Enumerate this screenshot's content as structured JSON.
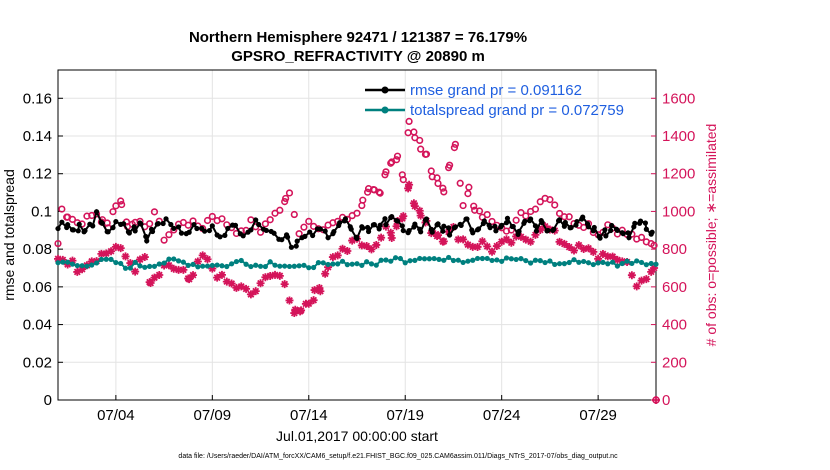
{
  "chart_data": {
    "type": "line",
    "title_line1": "Northern Hemisphere 92471 / 121387 = 76.179%",
    "title_line2": "GPSRO_REFRACTIVITY @ 20890 m",
    "xlabel": "Jul.01,2017 00:00:00 start",
    "ylabel_left": "rmse and totalspread",
    "ylabel_right": "# of obs: o=possible; ∗=assimilated",
    "footer": "data file: /Users/raeder/DAI/ATM_forcXX/CAM6_setup/f.e21.FHIST_BGC.f09_025.CAM6assim.011/Diags_NTrS_2017-07/obs_diag_output.nc",
    "xlim": [
      1,
      32
    ],
    "ylim_left": [
      0,
      0.175
    ],
    "ylim_right": [
      0,
      1750
    ],
    "xticks": [
      {
        "value": 4,
        "label": "07/04"
      },
      {
        "value": 9,
        "label": "07/09"
      },
      {
        "value": 14,
        "label": "07/14"
      },
      {
        "value": 19,
        "label": "07/19"
      },
      {
        "value": 24,
        "label": "07/24"
      },
      {
        "value": 29,
        "label": "07/29"
      }
    ],
    "yticks_left": [
      {
        "value": 0,
        "label": "0"
      },
      {
        "value": 0.02,
        "label": "0.02"
      },
      {
        "value": 0.04,
        "label": "0.04"
      },
      {
        "value": 0.06,
        "label": "0.06"
      },
      {
        "value": 0.08,
        "label": "0.08"
      },
      {
        "value": 0.1,
        "label": "0.1"
      },
      {
        "value": 0.12,
        "label": "0.12"
      },
      {
        "value": 0.14,
        "label": "0.14"
      },
      {
        "value": 0.16,
        "label": "0.16"
      }
    ],
    "yticks_right": [
      {
        "value": 0,
        "label": "0"
      },
      {
        "value": 200,
        "label": "200"
      },
      {
        "value": 400,
        "label": "400"
      },
      {
        "value": 600,
        "label": "600"
      },
      {
        "value": 800,
        "label": "800"
      },
      {
        "value": 1000,
        "label": "1000"
      },
      {
        "value": 1200,
        "label": "1200"
      },
      {
        "value": 1400,
        "label": "1400"
      },
      {
        "value": 1600,
        "label": "1600"
      }
    ],
    "legend": [
      {
        "name": "rmse grand pr = 0.091162",
        "color": "#000000"
      },
      {
        "name": "totalspread grand pr = 0.072759",
        "color": "#00807f"
      }
    ],
    "legend_text_color": "#1f5fe0",
    "legend_placement": "top-right",
    "grid": true,
    "colors": {
      "rmse": "#000000",
      "spread": "#00807f",
      "obs": "#d4145a"
    },
    "rmse_anchors": [
      [
        1.0,
        0.09
      ],
      [
        1.2,
        0.095
      ],
      [
        1.5,
        0.093
      ],
      [
        1.8,
        0.09
      ],
      [
        2.1,
        0.092
      ],
      [
        2.4,
        0.089
      ],
      [
        2.8,
        0.094
      ],
      [
        3.0,
        0.098
      ],
      [
        3.3,
        0.092
      ],
      [
        3.6,
        0.09
      ],
      [
        4.0,
        0.093
      ],
      [
        4.4,
        0.092
      ],
      [
        4.7,
        0.089
      ],
      [
        5.0,
        0.091
      ],
      [
        5.3,
        0.093
      ],
      [
        5.6,
        0.085
      ],
      [
        5.9,
        0.091
      ],
      [
        6.2,
        0.094
      ],
      [
        6.6,
        0.096
      ],
      [
        7.0,
        0.093
      ],
      [
        7.4,
        0.088
      ],
      [
        7.8,
        0.09
      ],
      [
        8.2,
        0.092
      ],
      [
        8.6,
        0.089
      ],
      [
        9.0,
        0.091
      ],
      [
        9.4,
        0.088
      ],
      [
        9.8,
        0.09
      ],
      [
        10.2,
        0.092
      ],
      [
        10.6,
        0.089
      ],
      [
        11.0,
        0.091
      ],
      [
        11.4,
        0.095
      ],
      [
        11.8,
        0.091
      ],
      [
        12.2,
        0.088
      ],
      [
        12.6,
        0.086
      ],
      [
        12.9,
        0.088
      ],
      [
        13.1,
        0.081
      ],
      [
        13.4,
        0.084
      ],
      [
        13.8,
        0.086
      ],
      [
        14.2,
        0.088
      ],
      [
        14.6,
        0.09
      ],
      [
        15.0,
        0.088
      ],
      [
        15.3,
        0.09
      ],
      [
        15.6,
        0.093
      ],
      [
        15.9,
        0.095
      ],
      [
        16.2,
        0.089
      ],
      [
        16.5,
        0.087
      ],
      [
        16.8,
        0.092
      ],
      [
        17.1,
        0.09
      ],
      [
        17.4,
        0.094
      ],
      [
        17.7,
        0.091
      ],
      [
        18.0,
        0.095
      ],
      [
        18.3,
        0.098
      ],
      [
        18.6,
        0.093
      ],
      [
        18.9,
        0.091
      ],
      [
        19.2,
        0.089
      ],
      [
        19.5,
        0.092
      ],
      [
        19.8,
        0.09
      ],
      [
        20.1,
        0.095
      ],
      [
        20.4,
        0.088
      ],
      [
        20.7,
        0.093
      ],
      [
        21.0,
        0.091
      ],
      [
        21.3,
        0.089
      ],
      [
        21.6,
        0.092
      ],
      [
        21.9,
        0.094
      ],
      [
        22.2,
        0.097
      ],
      [
        22.5,
        0.09
      ],
      [
        22.8,
        0.092
      ],
      [
        23.1,
        0.095
      ],
      [
        23.4,
        0.093
      ],
      [
        23.7,
        0.091
      ],
      [
        24.0,
        0.094
      ],
      [
        24.3,
        0.096
      ],
      [
        24.6,
        0.092
      ],
      [
        24.9,
        0.089
      ],
      [
        25.2,
        0.093
      ],
      [
        25.5,
        0.096
      ],
      [
        25.8,
        0.091
      ],
      [
        26.1,
        0.094
      ],
      [
        26.4,
        0.09
      ],
      [
        26.7,
        0.092
      ],
      [
        27.0,
        0.095
      ],
      [
        27.3,
        0.093
      ],
      [
        27.6,
        0.09
      ],
      [
        27.9,
        0.094
      ],
      [
        28.2,
        0.096
      ],
      [
        28.5,
        0.091
      ],
      [
        28.8,
        0.09
      ],
      [
        29.1,
        0.085
      ],
      [
        29.4,
        0.089
      ],
      [
        29.7,
        0.092
      ],
      [
        30.0,
        0.088
      ],
      [
        30.3,
        0.09
      ],
      [
        30.6,
        0.087
      ],
      [
        30.9,
        0.092
      ],
      [
        31.2,
        0.096
      ],
      [
        31.5,
        0.092
      ],
      [
        31.8,
        0.089
      ]
    ],
    "spread_anchors": [
      [
        1.0,
        0.072
      ],
      [
        1.5,
        0.073
      ],
      [
        2.0,
        0.071
      ],
      [
        2.5,
        0.072
      ],
      [
        3.0,
        0.073
      ],
      [
        3.5,
        0.074
      ],
      [
        4.0,
        0.073
      ],
      [
        4.5,
        0.07
      ],
      [
        5.0,
        0.072
      ],
      [
        5.5,
        0.071
      ],
      [
        6.0,
        0.072
      ],
      [
        6.5,
        0.073
      ],
      [
        7.0,
        0.074
      ],
      [
        7.5,
        0.073
      ],
      [
        8.0,
        0.072
      ],
      [
        8.5,
        0.071
      ],
      [
        9.0,
        0.072
      ],
      [
        9.5,
        0.071
      ],
      [
        10.0,
        0.072
      ],
      [
        10.5,
        0.074
      ],
      [
        11.0,
        0.072
      ],
      [
        11.5,
        0.071
      ],
      [
        12.0,
        0.073
      ],
      [
        12.5,
        0.072
      ],
      [
        13.0,
        0.071
      ],
      [
        13.5,
        0.07
      ],
      [
        14.0,
        0.071
      ],
      [
        14.5,
        0.072
      ],
      [
        15.0,
        0.071
      ],
      [
        15.5,
        0.072
      ],
      [
        16.0,
        0.073
      ],
      [
        16.5,
        0.072
      ],
      [
        17.0,
        0.073
      ],
      [
        17.5,
        0.072
      ],
      [
        18.0,
        0.074
      ],
      [
        18.5,
        0.075
      ],
      [
        19.0,
        0.074
      ],
      [
        19.5,
        0.075
      ],
      [
        20.0,
        0.076
      ],
      [
        20.5,
        0.075
      ],
      [
        21.0,
        0.074
      ],
      [
        21.5,
        0.075
      ],
      [
        22.0,
        0.074
      ],
      [
        22.5,
        0.075
      ],
      [
        23.0,
        0.076
      ],
      [
        23.5,
        0.075
      ],
      [
        24.0,
        0.074
      ],
      [
        24.5,
        0.075
      ],
      [
        25.0,
        0.074
      ],
      [
        25.5,
        0.073
      ],
      [
        26.0,
        0.074
      ],
      [
        26.5,
        0.073
      ],
      [
        27.0,
        0.072
      ],
      [
        27.5,
        0.073
      ],
      [
        28.0,
        0.074
      ],
      [
        28.5,
        0.073
      ],
      [
        29.0,
        0.072
      ],
      [
        29.5,
        0.073
      ],
      [
        30.0,
        0.072
      ],
      [
        30.5,
        0.073
      ],
      [
        31.0,
        0.074
      ],
      [
        31.5,
        0.073
      ],
      [
        32.0,
        0.072
      ]
    ],
    "possible_anchors": [
      [
        1.0,
        830
      ],
      [
        1.2,
        1010
      ],
      [
        1.5,
        980
      ],
      [
        2.0,
        940
      ],
      [
        2.5,
        960
      ],
      [
        3.0,
        990
      ],
      [
        3.3,
        945
      ],
      [
        3.6,
        930
      ],
      [
        4.0,
        1040
      ],
      [
        4.3,
        1050
      ],
      [
        4.6,
        920
      ],
      [
        5.0,
        960
      ],
      [
        5.5,
        900
      ],
      [
        6.0,
        1000
      ],
      [
        6.5,
        860
      ],
      [
        7.0,
        900
      ],
      [
        7.5,
        950
      ],
      [
        8.0,
        930
      ],
      [
        8.5,
        920
      ],
      [
        9.0,
        980
      ],
      [
        9.5,
        950
      ],
      [
        10.0,
        920
      ],
      [
        10.5,
        880
      ],
      [
        11.0,
        940
      ],
      [
        11.5,
        900
      ],
      [
        12.0,
        960
      ],
      [
        12.5,
        1000
      ],
      [
        12.8,
        1080
      ],
      [
        13.0,
        1100
      ],
      [
        13.5,
        900
      ],
      [
        14.0,
        940
      ],
      [
        14.5,
        890
      ],
      [
        15.0,
        930
      ],
      [
        15.5,
        950
      ],
      [
        16.0,
        960
      ],
      [
        16.5,
        1000
      ],
      [
        16.8,
        1050
      ],
      [
        17.1,
        1130
      ],
      [
        17.4,
        1100
      ],
      [
        17.7,
        1080
      ],
      [
        18.0,
        1200
      ],
      [
        18.3,
        1260
      ],
      [
        18.6,
        1300
      ],
      [
        18.9,
        1180
      ],
      [
        19.2,
        1470
      ],
      [
        19.5,
        1400
      ],
      [
        19.8,
        1350
      ],
      [
        20.1,
        1300
      ],
      [
        20.4,
        1200
      ],
      [
        20.7,
        1150
      ],
      [
        21.0,
        1100
      ],
      [
        21.3,
        1260
      ],
      [
        21.6,
        1340
      ],
      [
        22.0,
        1050
      ],
      [
        22.3,
        1120
      ],
      [
        22.6,
        1000
      ],
      [
        23.0,
        980
      ],
      [
        23.5,
        960
      ],
      [
        24.0,
        930
      ],
      [
        24.5,
        900
      ],
      [
        25.0,
        980
      ],
      [
        25.5,
        1000
      ],
      [
        26.0,
        1060
      ],
      [
        26.5,
        1080
      ],
      [
        27.0,
        1000
      ],
      [
        27.5,
        960
      ],
      [
        28.0,
        940
      ],
      [
        28.5,
        930
      ],
      [
        29.0,
        880
      ],
      [
        29.5,
        930
      ],
      [
        30.0,
        900
      ],
      [
        30.5,
        880
      ],
      [
        31.0,
        860
      ],
      [
        31.5,
        830
      ],
      [
        31.9,
        820
      ]
    ],
    "assimilated_anchors": [
      [
        1.0,
        760
      ],
      [
        1.5,
        740
      ],
      [
        2.0,
        700
      ],
      [
        2.5,
        730
      ],
      [
        3.0,
        760
      ],
      [
        3.5,
        780
      ],
      [
        4.0,
        810
      ],
      [
        4.5,
        760
      ],
      [
        5.0,
        700
      ],
      [
        5.5,
        750
      ],
      [
        5.8,
        600
      ],
      [
        6.0,
        640
      ],
      [
        6.5,
        690
      ],
      [
        7.0,
        700
      ],
      [
        7.5,
        680
      ],
      [
        7.8,
        620
      ],
      [
        8.0,
        660
      ],
      [
        8.5,
        760
      ],
      [
        9.0,
        700
      ],
      [
        9.5,
        640
      ],
      [
        10.0,
        610
      ],
      [
        10.5,
        590
      ],
      [
        11.0,
        560
      ],
      [
        11.5,
        600
      ],
      [
        12.0,
        680
      ],
      [
        12.5,
        660
      ],
      [
        13.0,
        520
      ],
      [
        13.3,
        470
      ],
      [
        13.6,
        490
      ],
      [
        14.0,
        520
      ],
      [
        14.3,
        560
      ],
      [
        14.6,
        600
      ],
      [
        15.0,
        720
      ],
      [
        15.5,
        780
      ],
      [
        16.0,
        800
      ],
      [
        16.5,
        850
      ],
      [
        17.0,
        800
      ],
      [
        17.5,
        830
      ],
      [
        18.0,
        900
      ],
      [
        18.3,
        880
      ],
      [
        18.6,
        950
      ],
      [
        18.9,
        980
      ],
      [
        19.2,
        1150
      ],
      [
        19.5,
        1050
      ],
      [
        19.8,
        980
      ],
      [
        20.1,
        930
      ],
      [
        20.4,
        900
      ],
      [
        20.7,
        880
      ],
      [
        21.0,
        860
      ],
      [
        21.5,
        900
      ],
      [
        22.0,
        850
      ],
      [
        22.5,
        820
      ],
      [
        23.0,
        830
      ],
      [
        23.5,
        800
      ],
      [
        24.0,
        820
      ],
      [
        24.5,
        840
      ],
      [
        25.0,
        850
      ],
      [
        25.5,
        860
      ],
      [
        26.0,
        920
      ],
      [
        26.5,
        900
      ],
      [
        27.0,
        850
      ],
      [
        27.5,
        820
      ],
      [
        28.0,
        800
      ],
      [
        28.5,
        790
      ],
      [
        29.0,
        760
      ],
      [
        29.5,
        780
      ],
      [
        30.0,
        720
      ],
      [
        30.5,
        740
      ],
      [
        31.0,
        600
      ],
      [
        31.5,
        660
      ],
      [
        31.9,
        700
      ]
    ],
    "end_marker": {
      "x": 32,
      "value": 0
    }
  }
}
